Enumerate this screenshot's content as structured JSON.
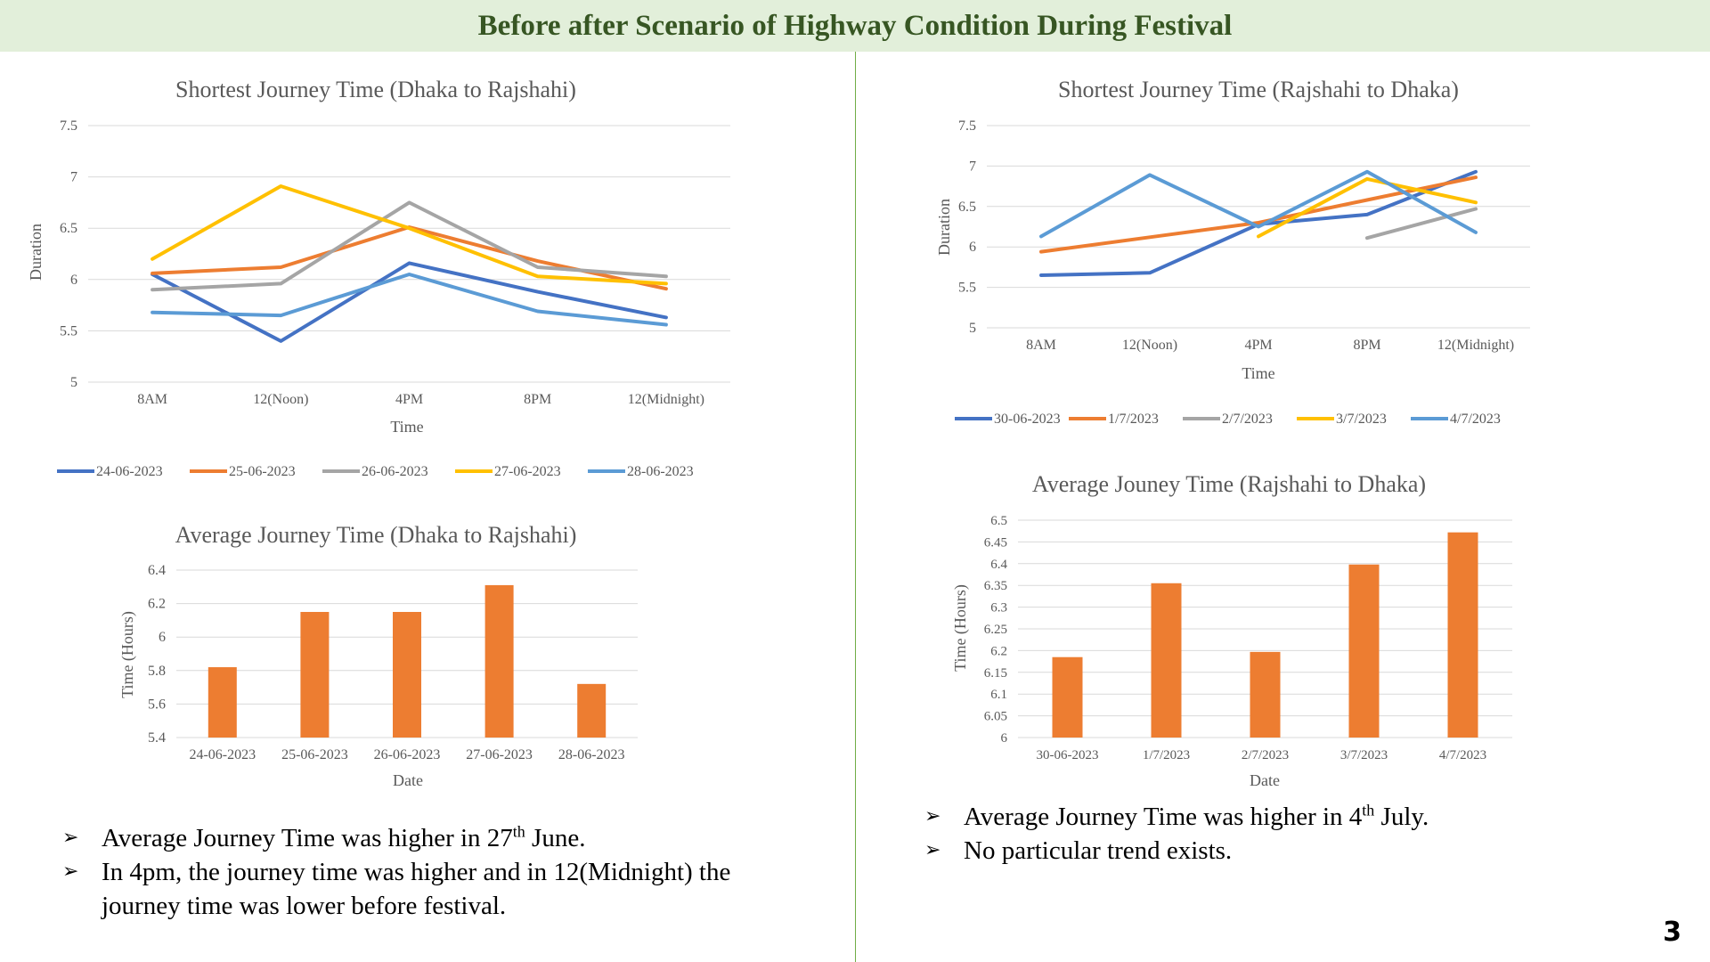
{
  "page": {
    "title": "Before after Scenario of Highway Condition During Festival",
    "page_number": "3"
  },
  "colors": {
    "header_bg": "#e2efda",
    "header_text": "#375623",
    "divider": "#70ad47",
    "bar": "#ed7d31",
    "series": [
      "#4472c4",
      "#ed7d31",
      "#a5a5a5",
      "#ffc000",
      "#5b9bd5"
    ]
  },
  "chart_data": [
    {
      "type": "line",
      "title": "Shortest Journey Time  (Dhaka to Rajshahi)",
      "xlabel": "Time",
      "ylabel": "Duration",
      "categories": [
        "8AM",
        "12(Noon)",
        "4PM",
        "8PM",
        "12(Midnight)"
      ],
      "ylim": [
        5,
        7.5
      ],
      "yticks": [
        "5",
        "5.5",
        "6",
        "6.5",
        "7",
        "7.5"
      ],
      "grid": true,
      "legend_position": "bottom",
      "series": [
        {
          "name": "24-06-2023",
          "values": [
            6.05,
            5.4,
            6.16,
            5.88,
            5.63
          ]
        },
        {
          "name": "25-06-2023",
          "values": [
            6.06,
            6.12,
            6.51,
            6.18,
            5.91
          ]
        },
        {
          "name": "26-06-2023",
          "values": [
            5.9,
            5.96,
            6.75,
            6.12,
            6.03
          ]
        },
        {
          "name": "27-06-2023",
          "values": [
            6.2,
            6.91,
            6.5,
            6.03,
            5.96
          ]
        },
        {
          "name": "28-06-2023",
          "values": [
            5.68,
            5.65,
            6.05,
            5.69,
            5.56
          ]
        }
      ]
    },
    {
      "type": "line",
      "title": "Shortest Journey Time  (Rajshahi to Dhaka)",
      "xlabel": "Time",
      "ylabel": "Duration",
      "categories": [
        "8AM",
        "12(Noon)",
        "4PM",
        "8PM",
        "12(Midnight)"
      ],
      "ylim": [
        5,
        7.5
      ],
      "yticks": [
        "5",
        "5.5",
        "6",
        "6.5",
        "7",
        "7.5"
      ],
      "grid": true,
      "legend_position": "bottom",
      "series": [
        {
          "name": "30-06-2023",
          "values": [
            5.65,
            5.68,
            6.28,
            6.4,
            6.93
          ]
        },
        {
          "name": "1/7/2023",
          "values": [
            5.94,
            6.12,
            6.3,
            6.58,
            6.86
          ]
        },
        {
          "name": "2/7/2023",
          "values": [
            null,
            null,
            null,
            6.11,
            6.47
          ]
        },
        {
          "name": "3/7/2023",
          "values": [
            null,
            null,
            6.13,
            6.84,
            6.55
          ]
        },
        {
          "name": "4/7/2023",
          "values": [
            6.13,
            6.89,
            6.25,
            6.93,
            6.18
          ]
        }
      ]
    },
    {
      "type": "bar",
      "title": "Average Journey Time (Dhaka to Rajshahi)",
      "xlabel": "Date",
      "ylabel": "Time (Hours)",
      "categories": [
        "24-06-2023",
        "25-06-2023",
        "26-06-2023",
        "27-06-2023",
        "28-06-2023"
      ],
      "values": [
        5.82,
        6.15,
        6.15,
        6.31,
        5.72
      ],
      "ylim": [
        5.4,
        6.4
      ],
      "yticks": [
        "5.4",
        "5.6",
        "5.8",
        "6",
        "6.2",
        "6.4"
      ],
      "grid": true
    },
    {
      "type": "bar",
      "title": "Average Jouney Time (Rajshahi to Dhaka)",
      "xlabel": "Date",
      "ylabel": "Time (Hours)",
      "categories": [
        "30-06-2023",
        "1/7/2023",
        "2/7/2023",
        "3/7/2023",
        "4/7/2023"
      ],
      "values": [
        6.185,
        6.355,
        6.197,
        6.398,
        6.472
      ],
      "ylim": [
        6,
        6.5
      ],
      "yticks": [
        "6",
        "6.05",
        "6.1",
        "6.15",
        "6.2",
        "6.25",
        "6.3",
        "6.35",
        "6.4",
        "6.45",
        "6.5"
      ],
      "grid": true
    }
  ],
  "notes_left": [
    {
      "pre": "Average Journey Time was higher in 27",
      "sup": "th",
      "post": " June."
    },
    {
      "pre": "In 4pm, the journey time was higher and in 12(Midnight) the journey time was lower before festival.",
      "sup": "",
      "post": ""
    }
  ],
  "notes_right": [
    {
      "pre": "Average Journey Time was higher in 4",
      "sup": "th",
      "post": " July."
    },
    {
      "pre": "No particular trend exists.",
      "sup": "",
      "post": ""
    }
  ],
  "bullet_glyph": "➢"
}
